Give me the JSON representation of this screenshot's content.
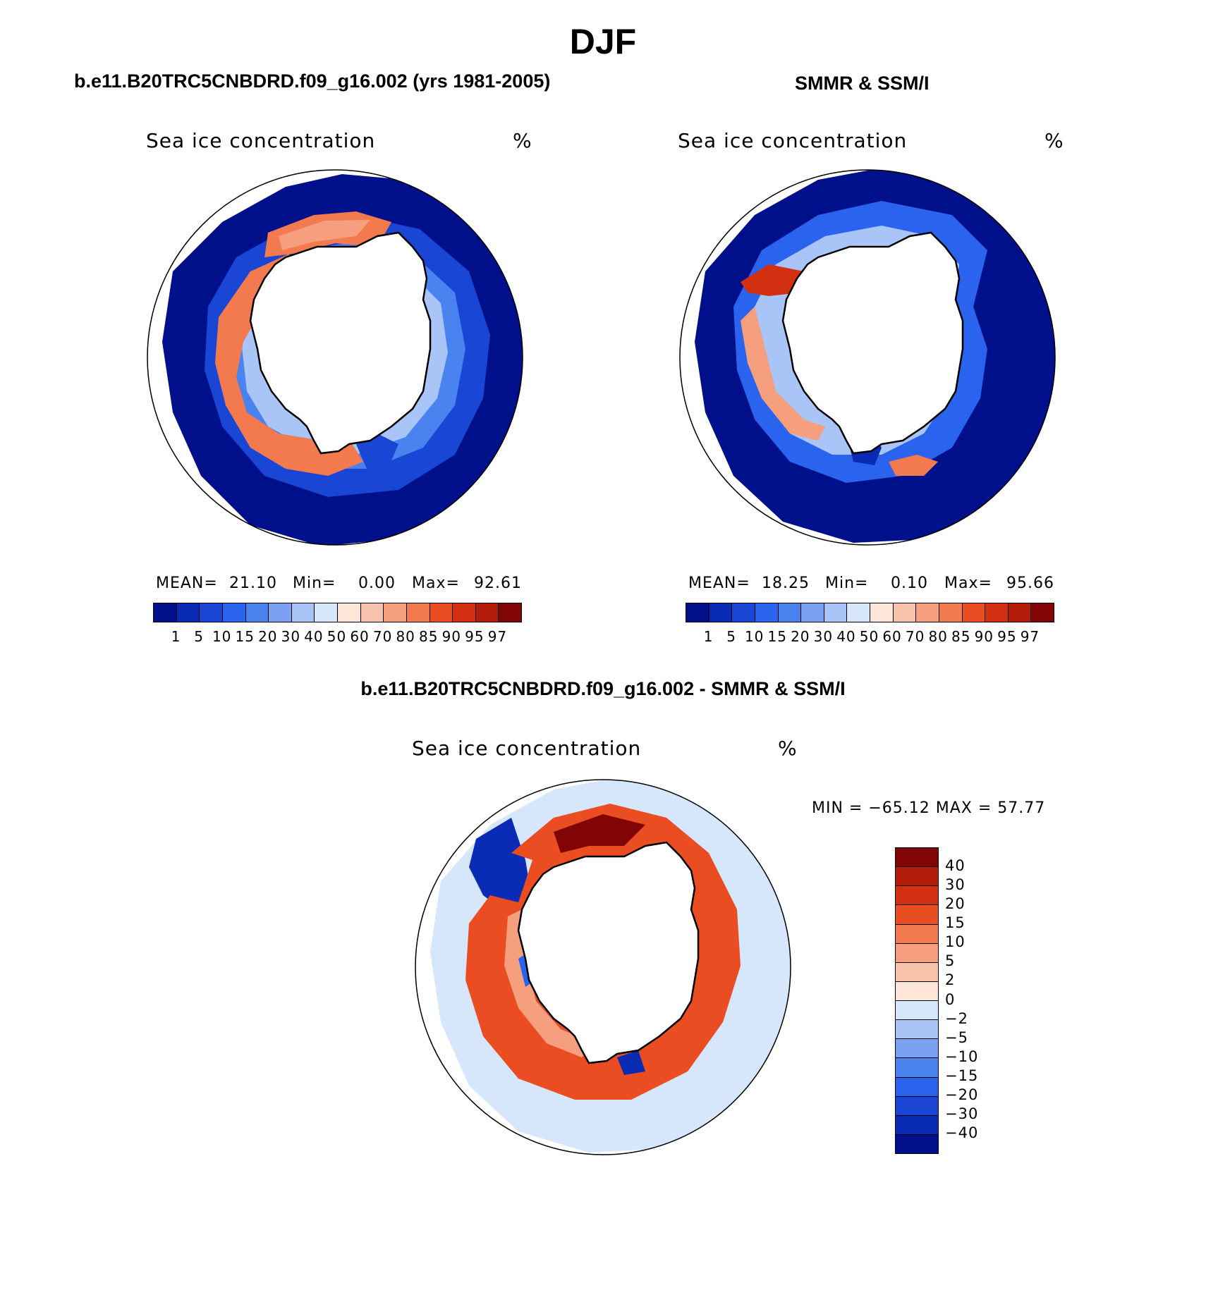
{
  "main_title": "DJF",
  "panels": {
    "left": {
      "title": "b.e11.B20TRC5CNBDRD.f09_g16.002 (yrs 1981-2005)",
      "field_label": "Sea ice concentration",
      "unit": "%",
      "stats": {
        "mean_label": "MEAN=",
        "mean": "21.10",
        "min_label": "Min=",
        "min": "0.00",
        "max_label": "Max=",
        "max": "92.61"
      }
    },
    "right": {
      "title": "SMMR & SSM/I",
      "field_label": "Sea ice concentration",
      "unit": "%",
      "stats": {
        "mean_label": "MEAN=",
        "mean": "18.25",
        "min_label": "Min=",
        "min": "0.10",
        "max_label": "Max=",
        "max": "95.66"
      }
    },
    "diff": {
      "title": "b.e11.B20TRC5CNBDRD.f09_g16.002 - SMMR & SSM/I",
      "field_label": "Sea ice concentration",
      "unit": "%",
      "minmax": "MIN = −65.12 MAX =   57.77"
    }
  },
  "colorbar_concentration": {
    "colors": [
      "#00108a",
      "#0a2bb3",
      "#1a46d6",
      "#2a63ee",
      "#4a82f0",
      "#7ba2f2",
      "#a9c4f6",
      "#d6e6fb",
      "#fde6d8",
      "#f8c3ac",
      "#f59f7f",
      "#f3794f",
      "#ea4d22",
      "#d23010",
      "#b41c0a",
      "#820505"
    ],
    "ticks": [
      "1",
      "5",
      "10",
      "15",
      "20",
      "30",
      "40",
      "50",
      "60",
      "70",
      "80",
      "85",
      "90",
      "95",
      "97"
    ]
  },
  "colorbar_difference": {
    "colors": [
      "#820505",
      "#b41c0a",
      "#d23010",
      "#ea4d22",
      "#f3794f",
      "#f59f7f",
      "#f8c3ac",
      "#fde6d8",
      "#d6e6fb",
      "#a9c4f6",
      "#7ba2f2",
      "#4a82f0",
      "#2a63ee",
      "#1a46d6",
      "#0a2bb3",
      "#00108a"
    ],
    "ticks": [
      "40",
      "30",
      "20",
      "15",
      "10",
      "5",
      "2",
      "0",
      "−2",
      "−5",
      "−10",
      "−15",
      "−20",
      "−30",
      "−40"
    ]
  }
}
